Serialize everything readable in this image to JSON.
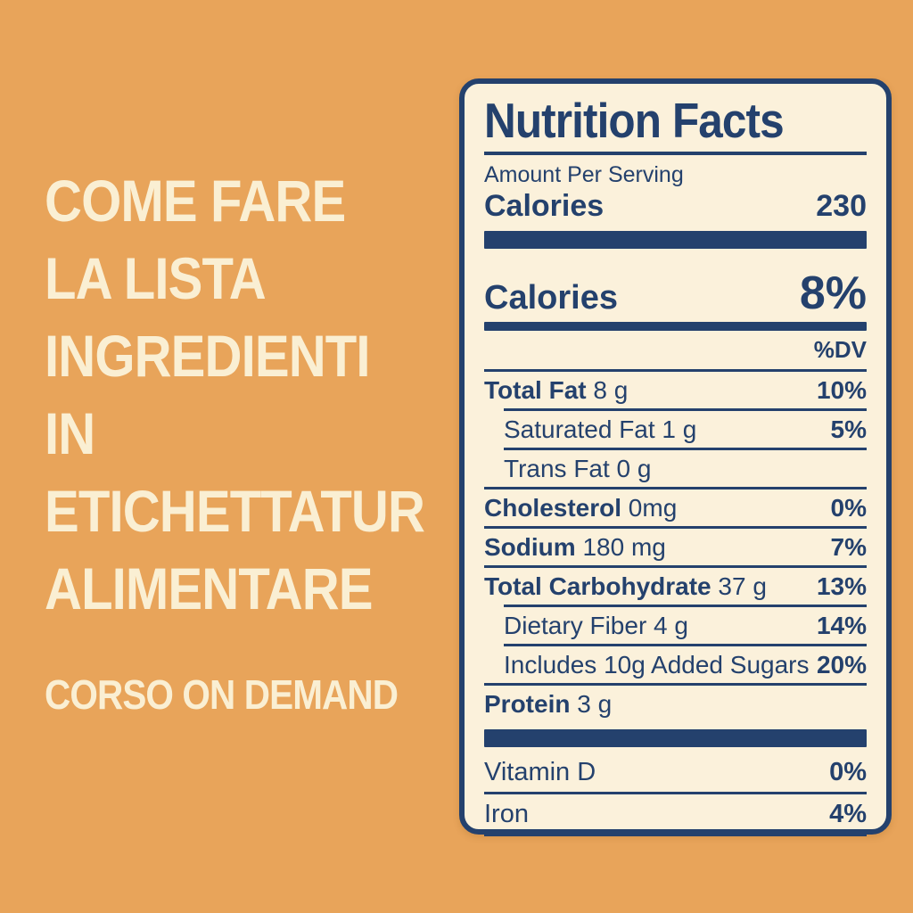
{
  "colors": {
    "background_orange": "#E8A45A",
    "cream_text": "#FAEFD3",
    "label_background": "#FBF1DB",
    "navy": "#24416D"
  },
  "left_panel": {
    "headline_lines": [
      "COME FARE",
      "LA LISTA",
      "INGREDIENTI",
      "IN",
      "ETICHETTATUR",
      "ALIMENTARE"
    ],
    "subtitle": "CORSO ON DEMAND"
  },
  "label": {
    "title": "Nutrition Facts",
    "amount_per_serving": "Amount Per Serving",
    "calories_row": {
      "name": "Calories",
      "value": "230"
    },
    "calories_dv_row": {
      "name": "Calories",
      "value": "8%"
    },
    "dv_header": "%DV",
    "rows": [
      {
        "name": "Total Fat",
        "amount": "8 g",
        "dv": "10%",
        "bold": true,
        "indent": false
      },
      {
        "name": "Saturated Fat",
        "amount": "1 g",
        "dv": "5%",
        "bold": false,
        "indent": true
      },
      {
        "name": "Trans Fat",
        "amount": "0 g",
        "dv": "",
        "bold": false,
        "indent": true
      },
      {
        "name": "Cholesterol",
        "amount": "0mg",
        "dv": "0%",
        "bold": true,
        "indent": false
      },
      {
        "name": "Sodium",
        "amount": "180 mg",
        "dv": "7%",
        "bold": true,
        "indent": false
      },
      {
        "name": "Total Carbohydrate",
        "amount": "37 g",
        "dv": "13%",
        "bold": true,
        "indent": false
      },
      {
        "name": "Dietary Fiber",
        "amount": "4 g",
        "dv": "14%",
        "bold": false,
        "indent": true
      },
      {
        "name": "Includes 10g Added Sugars",
        "amount": "",
        "dv": "20%",
        "bold": false,
        "indent": true
      },
      {
        "name": "Protein",
        "amount": "3 g",
        "dv": "",
        "bold": true,
        "indent": false
      }
    ],
    "vitamins": [
      {
        "name": "Vitamin D",
        "dv": "0%"
      },
      {
        "name": "Iron",
        "dv": "4%"
      }
    ]
  }
}
